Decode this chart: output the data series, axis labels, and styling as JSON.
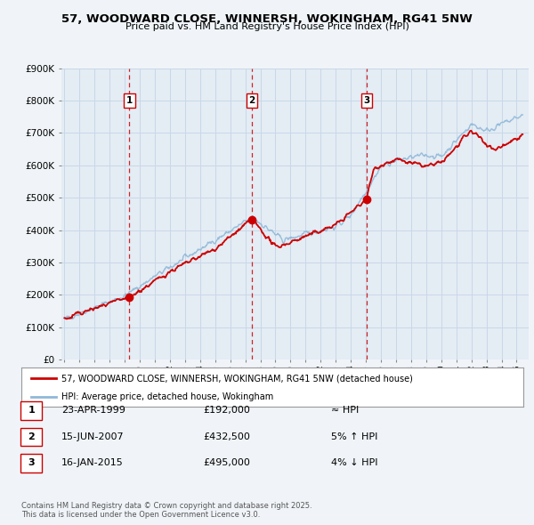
{
  "title": "57, WOODWARD CLOSE, WINNERSH, WOKINGHAM, RG41 5NW",
  "subtitle": "Price paid vs. HM Land Registry's House Price Index (HPI)",
  "bg_color": "#f0f4f8",
  "plot_bg_color": "#e4ecf4",
  "grid_color": "#c8d8e8",
  "hpi_color": "#90b8d8",
  "price_color": "#cc0000",
  "sale_marker_color": "#cc0000",
  "vline_color": "#cc0000",
  "legend_entry1": "57, WOODWARD CLOSE, WINNERSH, WOKINGHAM, RG41 5NW (detached house)",
  "legend_entry2": "HPI: Average price, detached house, Wokingham",
  "sale1_date": 1999.31,
  "sale1_price": 192000,
  "sale1_label": "1",
  "sale2_date": 2007.45,
  "sale2_price": 432500,
  "sale2_label": "2",
  "sale3_date": 2015.04,
  "sale3_price": 495000,
  "sale3_label": "3",
  "table_data": [
    [
      "1",
      "23-APR-1999",
      "£192,000",
      "≈ HPI"
    ],
    [
      "2",
      "15-JUN-2007",
      "£432,500",
      "5% ↑ HPI"
    ],
    [
      "3",
      "16-JAN-2015",
      "£495,000",
      "4% ↓ HPI"
    ]
  ],
  "footnote1": "Contains HM Land Registry data © Crown copyright and database right 2025.",
  "footnote2": "This data is licensed under the Open Government Licence v3.0.",
  "ylim": [
    0,
    900000
  ],
  "xlim_start": 1994.8,
  "xlim_end": 2025.8
}
